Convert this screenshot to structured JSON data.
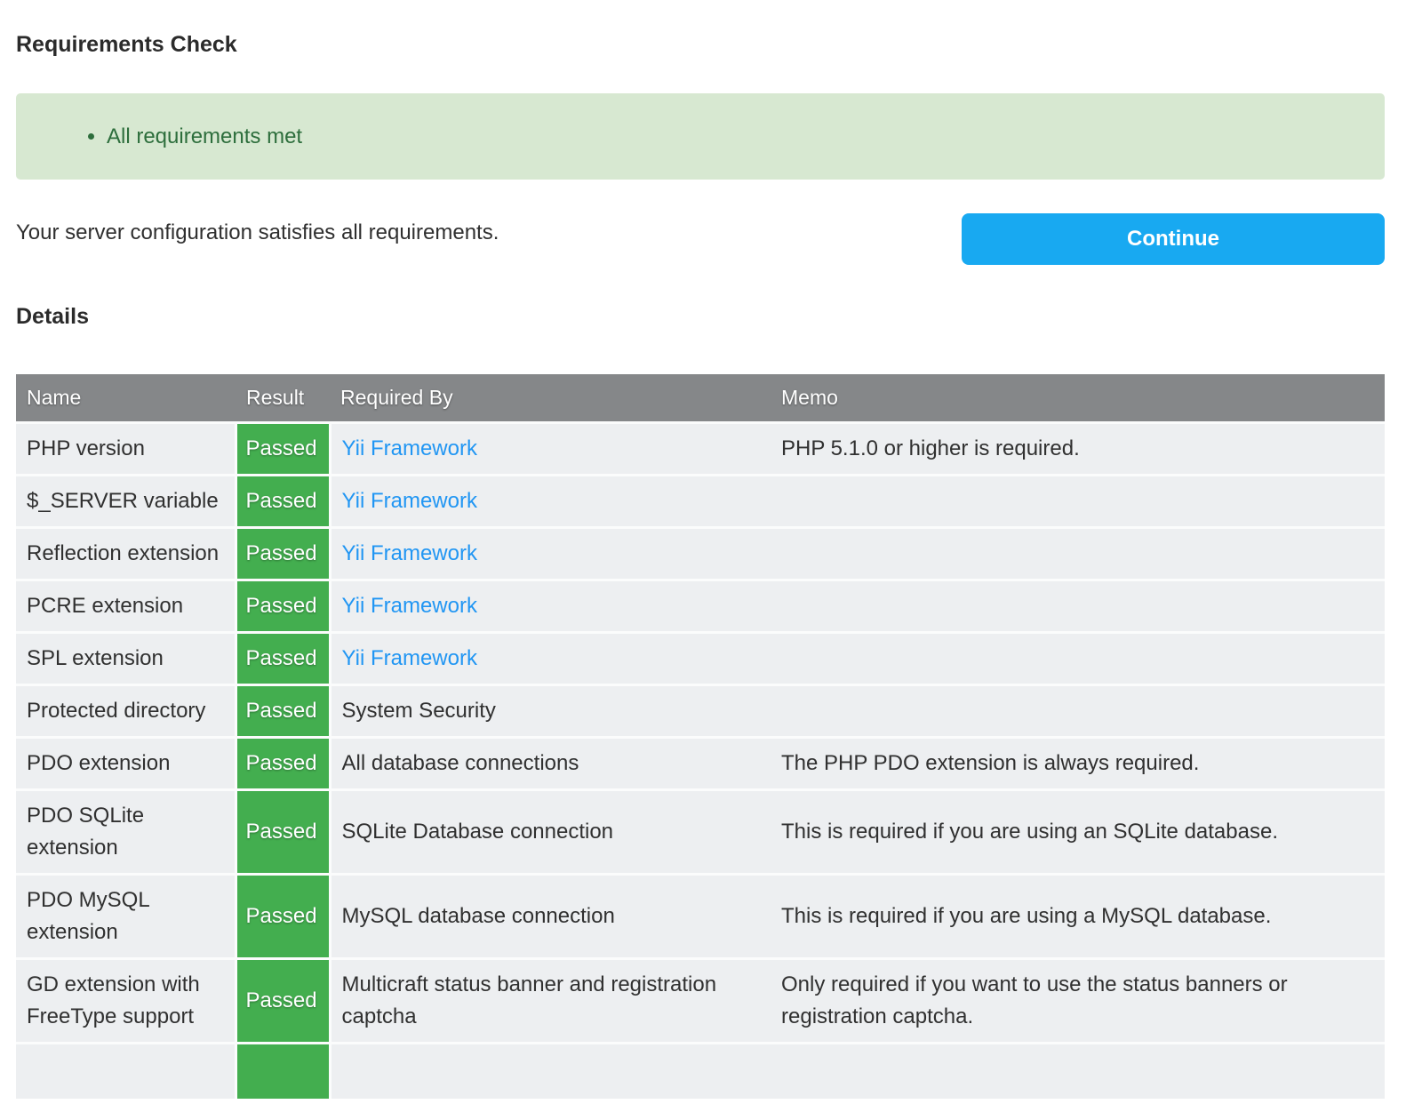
{
  "page": {
    "title": "Requirements Check",
    "alert_items": [
      "All requirements met"
    ],
    "summary": "Your server configuration satisfies all requirements.",
    "continue_label": "Continue",
    "details_heading": "Details"
  },
  "table": {
    "columns": [
      "Name",
      "Result",
      "Required By",
      "Memo"
    ],
    "rows": [
      {
        "name": "PHP version",
        "result": "Passed",
        "required_by": "Yii Framework",
        "link": true,
        "memo": "PHP 5.1.0 or higher is required."
      },
      {
        "name": "$_SERVER variable",
        "result": "Passed",
        "required_by": "Yii Framework",
        "link": true,
        "memo": ""
      },
      {
        "name": "Reflection extension",
        "result": "Passed",
        "required_by": "Yii Framework",
        "link": true,
        "memo": ""
      },
      {
        "name": "PCRE extension",
        "result": "Passed",
        "required_by": "Yii Framework",
        "link": true,
        "memo": ""
      },
      {
        "name": "SPL extension",
        "result": "Passed",
        "required_by": "Yii Framework",
        "link": true,
        "memo": ""
      },
      {
        "name": "Protected directory",
        "result": "Passed",
        "required_by": "System Security",
        "link": false,
        "memo": ""
      },
      {
        "name": "PDO extension",
        "result": "Passed",
        "required_by": "All database connections",
        "link": false,
        "memo": "The PHP PDO extension is always required."
      },
      {
        "name": "PDO SQLite extension",
        "result": "Passed",
        "required_by": "SQLite Database connection",
        "link": false,
        "memo": "This is required if you are using an SQLite database."
      },
      {
        "name": "PDO MySQL extension",
        "result": "Passed",
        "required_by": "MySQL database connection",
        "link": false,
        "memo": "This is required if you are using a MySQL database."
      },
      {
        "name": "GD extension with FreeType support",
        "result": "Passed",
        "required_by": "Multicraft status banner and registration captcha",
        "link": false,
        "memo": "Only required if you want to use the status banners or registration captcha."
      }
    ],
    "partial_row_visible": true
  },
  "colors": {
    "button_blue": "#18a9f1",
    "link_blue": "#2196f3",
    "success_green": "#43ae4f",
    "alert_bg": "#d7e8d1",
    "alert_text": "#2d6e3c",
    "header_gray": "#858789",
    "row_bg": "#edeff1"
  }
}
